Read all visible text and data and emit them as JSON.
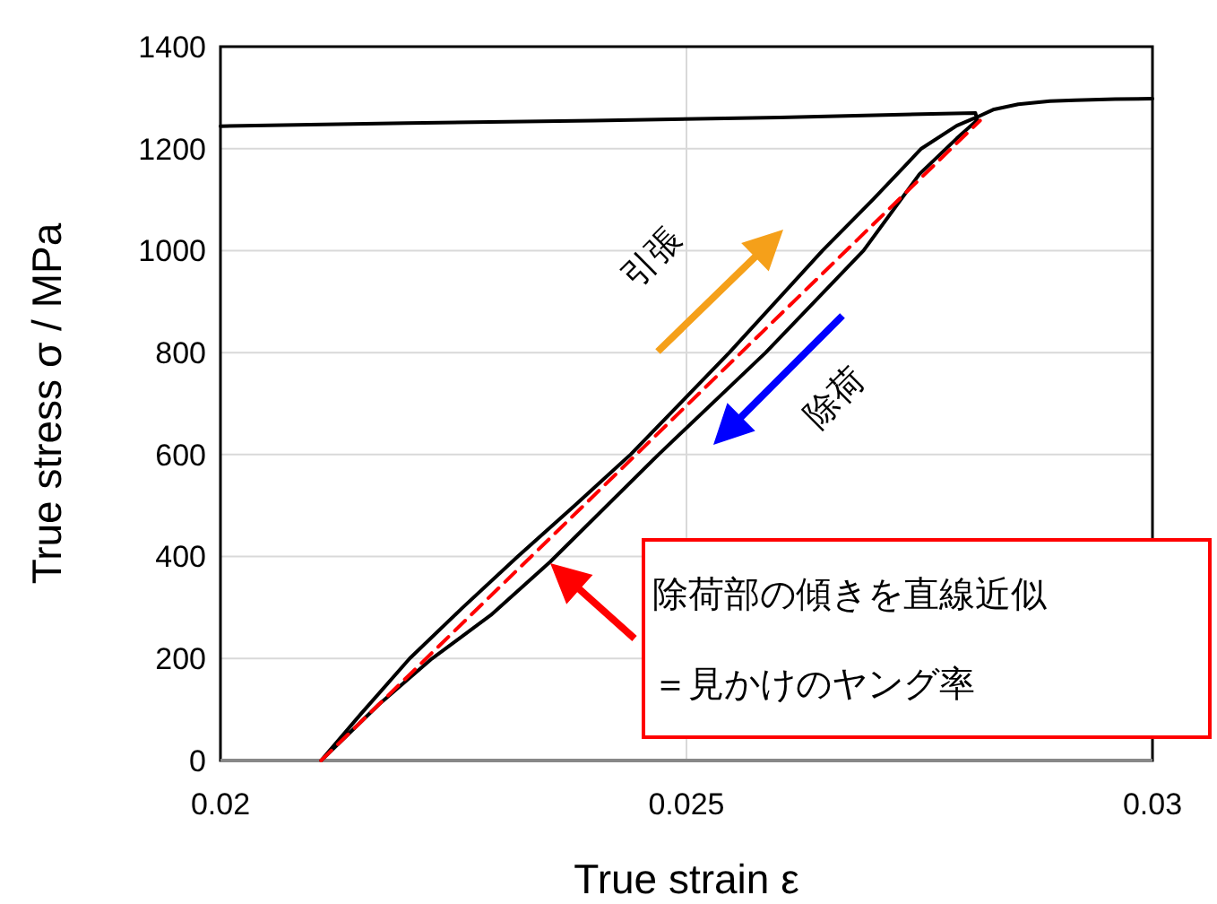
{
  "chart_data": {
    "type": "line",
    "xlabel": "True strain ε",
    "ylabel": "True stress σ / MPa",
    "xlim": [
      0.02,
      0.03
    ],
    "ylim": [
      0,
      1400
    ],
    "xticks": [
      0.02,
      0.025,
      0.03
    ],
    "yticks": [
      0,
      200,
      400,
      600,
      800,
      1000,
      1200,
      1400
    ],
    "grid": true,
    "line_style": "solid",
    "marker": "none",
    "series": [
      {
        "color": "#000000",
        "x": [
          0.02,
          0.022,
          0.024,
          0.026,
          0.0281,
          0.02812,
          0.0279,
          0.0275,
          0.0269,
          0.02585,
          0.0247,
          0.02354,
          0.0229,
          0.02227,
          0.0217,
          0.02108,
          0.0215,
          0.02203,
          0.0226,
          0.02319,
          0.0238,
          0.0244,
          0.02546,
          0.02646,
          0.027,
          0.02752,
          0.0279,
          0.02812,
          0.0283,
          0.02856,
          0.0289,
          0.02917,
          0.0296,
          0.03
        ],
        "values": [
          1244,
          1250,
          1255,
          1261,
          1270,
          1256,
          1220,
          1150,
          1000,
          800,
          600,
          390,
          285,
          200,
          110,
          0,
          90,
          200,
          300,
          400,
          500,
          600,
          800,
          1000,
          1100,
          1200,
          1245,
          1262,
          1277,
          1287,
          1293,
          1295,
          1297,
          1298
        ]
      },
      {
        "color": "#ff0000",
        "line_style": "dashed",
        "x": [
          0.02108,
          0.02815
        ],
        "values": [
          0,
          1255
        ]
      }
    ],
    "annotations": [
      "引張",
      "除荷",
      "除荷部の傾きを直線近似",
      "＝見かけのヤング率"
    ]
  }
}
